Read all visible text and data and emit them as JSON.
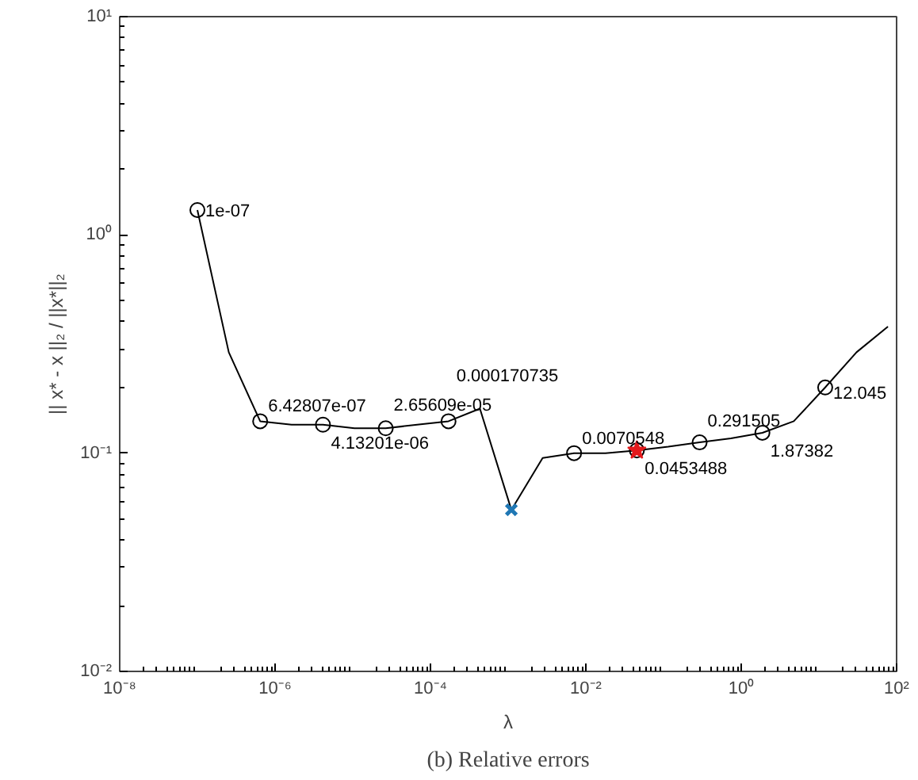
{
  "chart_data": {
    "type": "line",
    "xlabel": "λ",
    "ylabel": "|| x* - x ||₂ / ||x*||₂",
    "log": "xy",
    "grid": false,
    "xlim": [
      1e-08,
      100
    ],
    "ylim": [
      0.01,
      10
    ],
    "xticks": [
      {
        "value": 1e-08,
        "label": "10⁻⁸"
      },
      {
        "value": 1e-06,
        "label": "10⁻⁶"
      },
      {
        "value": 0.0001,
        "label": "10⁻⁴"
      },
      {
        "value": 0.01,
        "label": "10⁻²"
      },
      {
        "value": 1,
        "label": "10⁰"
      },
      {
        "value": 100,
        "label": "10²"
      }
    ],
    "yticks": [
      {
        "value": 0.01,
        "label": "10⁻²"
      },
      {
        "value": 0.1,
        "label": "10⁻¹"
      },
      {
        "value": 1,
        "label": "10⁰"
      },
      {
        "value": 10,
        "label": "10¹"
      }
    ],
    "annotations": [
      "(b) Relative errors",
      {
        "text": "1e-07",
        "x": 1e-07,
        "y": 1.3
      },
      {
        "text": "6.42807e-07",
        "x": 6.42807e-07,
        "y": 0.14
      },
      {
        "text": "4.13201e-06",
        "x": 4.13201e-06,
        "y": 0.135
      },
      {
        "text": "2.65609e-05",
        "x": 2.65609e-05,
        "y": 0.13
      },
      {
        "text": "0.000170735",
        "x": 0.000170735,
        "y": 0.14
      },
      {
        "text": "0.0070548",
        "x": 0.0070548,
        "y": 0.1
      },
      {
        "text": "0.0453488",
        "x": 0.0453488,
        "y": 0.103
      },
      {
        "text": "0.291505",
        "x": 0.291505,
        "y": 0.112
      },
      {
        "text": "1.87382",
        "x": 1.87382,
        "y": 0.124
      },
      {
        "text": "12.045",
        "x": 12.045,
        "y": 0.2
      }
    ],
    "series": [
      {
        "color": "#000000",
        "marker": "none",
        "x": [
          1e-07,
          2.535e-07,
          6.42807e-07,
          1.63e-06,
          4.13201e-06,
          1.05e-05,
          2.65609e-05,
          6.74e-05,
          0.000170735,
          0.000433,
          0.0011,
          0.00278,
          0.0070548,
          0.0179,
          0.0453488,
          0.115,
          0.291505,
          0.739,
          1.87382,
          4.75,
          12.045,
          30.5,
          77.4
        ],
        "values": [
          1.3,
          0.29,
          0.14,
          0.135,
          0.135,
          0.13,
          0.13,
          0.135,
          0.14,
          0.16,
          0.055,
          0.095,
          0.1,
          0.1,
          0.103,
          0.107,
          0.112,
          0.117,
          0.124,
          0.14,
          0.2,
          0.29,
          0.38
        ]
      },
      {
        "type": "scatter",
        "color": "#000000",
        "marker": "circle",
        "x": [
          1e-07,
          6.42807e-07,
          4.13201e-06,
          2.65609e-05,
          0.000170735,
          0.0070548,
          0.0453488,
          0.291505,
          1.87382,
          12.045
        ],
        "values": [
          1.3,
          0.14,
          0.135,
          0.13,
          0.14,
          0.1,
          0.103,
          0.112,
          0.124,
          0.2
        ]
      },
      {
        "type": "scatter",
        "color": "#1f77b4",
        "marker": "cross",
        "x": [
          0.0011
        ],
        "values": [
          0.055
        ]
      },
      {
        "type": "scatter",
        "color": "#e41a1c",
        "marker": "star",
        "x": [
          0.0453488
        ],
        "values": [
          0.103
        ]
      }
    ]
  }
}
